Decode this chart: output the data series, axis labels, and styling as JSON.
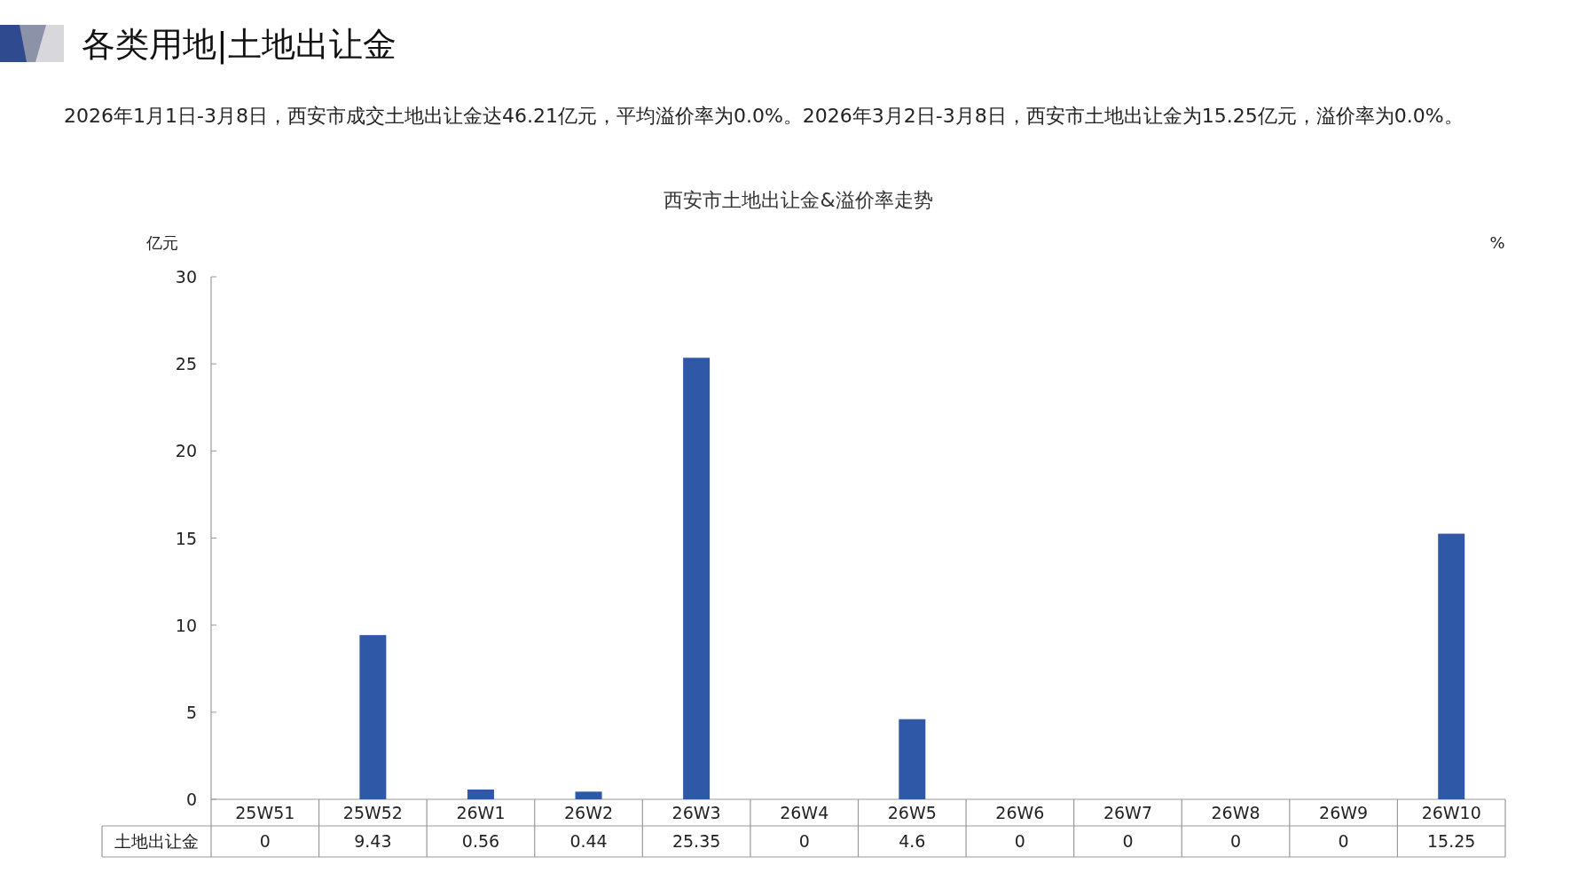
{
  "chart_data": {
    "type": "bar",
    "title": "西安市土地出让金&溢价率走势",
    "ylabel": "亿元",
    "y2label": "%",
    "annotations": [
      "各类用地|土地出让金",
      "2026年1月1日-3月8日，西安市成交土地出让金达46.21亿元，平均溢价率为0.0%。2026年3月2日-3月8日，西安市土地出让金为15.25亿元，溢价率为0.0%。"
    ],
    "categories": [
      "25W51",
      "25W52",
      "26W1",
      "26W2",
      "26W3",
      "26W4",
      "26W5",
      "26W6",
      "26W7",
      "26W8",
      "26W9",
      "26W10"
    ],
    "series": [
      {
        "name": "土地出让金",
        "color": "#2f58a6",
        "values": [
          0,
          9.43,
          0.56,
          0.44,
          25.35,
          0,
          4.6,
          0,
          0,
          0,
          0,
          15.25
        ]
      }
    ],
    "ylim": [
      0,
      30
    ],
    "yticks": [
      0,
      5,
      10,
      15,
      20,
      25,
      30
    ],
    "data_labels": true,
    "grid": false
  }
}
